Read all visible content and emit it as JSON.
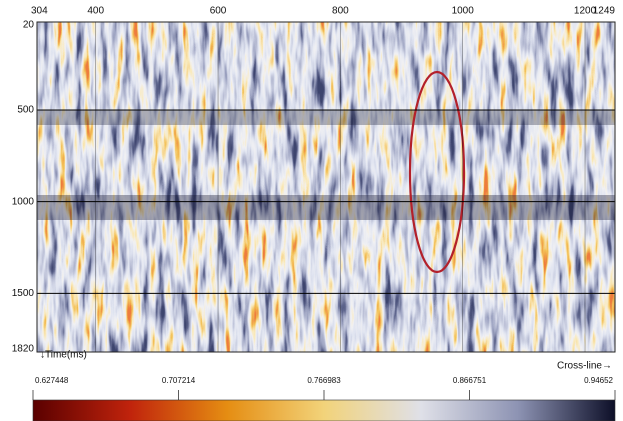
{
  "chart_data": {
    "type": "heatmap",
    "x_label": "Cross-line→",
    "y_label": "↓Time(ms)",
    "xlim": [
      304,
      1249
    ],
    "xticks": [
      304,
      400,
      600,
      800,
      1000,
      1200,
      1249
    ],
    "ylim": [
      20,
      1820
    ],
    "yticks": [
      20,
      500,
      1000,
      1500,
      1820
    ],
    "grid": true,
    "colorbar": {
      "colors": [
        "#5a0000",
        "#c0230c",
        "#e58d12",
        "#f2d37a",
        "#dfe0e8",
        "#8d93b3",
        "#0d0f28"
      ],
      "ticks": [
        0.627448,
        0.707214,
        0.766983,
        0.866751,
        0.94652
      ]
    }
  }
}
